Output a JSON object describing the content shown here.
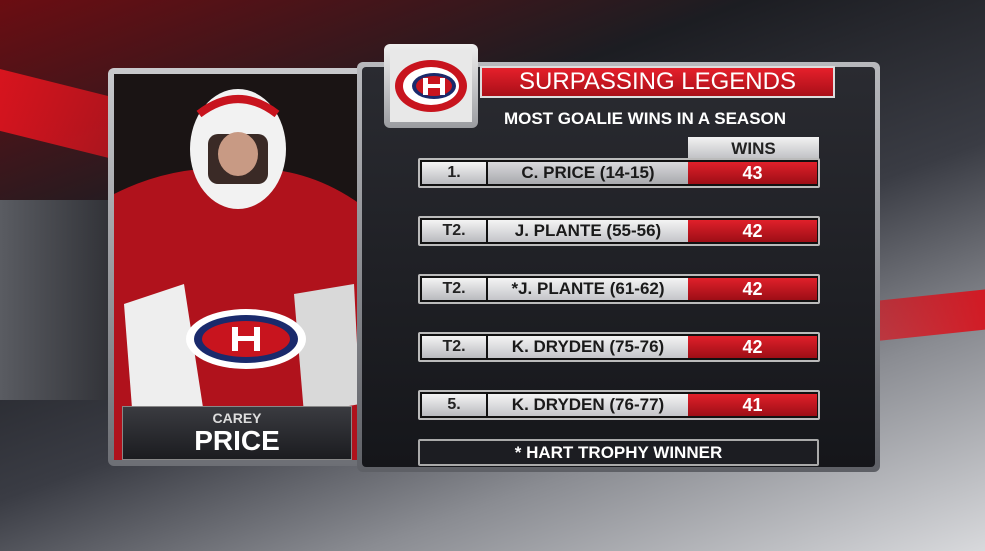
{
  "header": {
    "title": "SURPASSING LEGENDS",
    "subtitle": "MOST GOALIE WINS IN A SEASON"
  },
  "player": {
    "first_name": "CAREY",
    "last_name": "PRICE"
  },
  "table": {
    "header": "WINS",
    "rows": [
      [
        "1.",
        "C. PRICE (14-15)",
        "43"
      ],
      [
        "T2.",
        "J. PLANTE (55-56)",
        "42"
      ],
      [
        "T2.",
        "*J. PLANTE (61-62)",
        "42"
      ],
      [
        "T2.",
        "K. DRYDEN (75-76)",
        "42"
      ],
      [
        "5.",
        "K. DRYDEN (76-77)",
        "41"
      ]
    ]
  },
  "footnote": "* HART TROPHY WINNER"
}
